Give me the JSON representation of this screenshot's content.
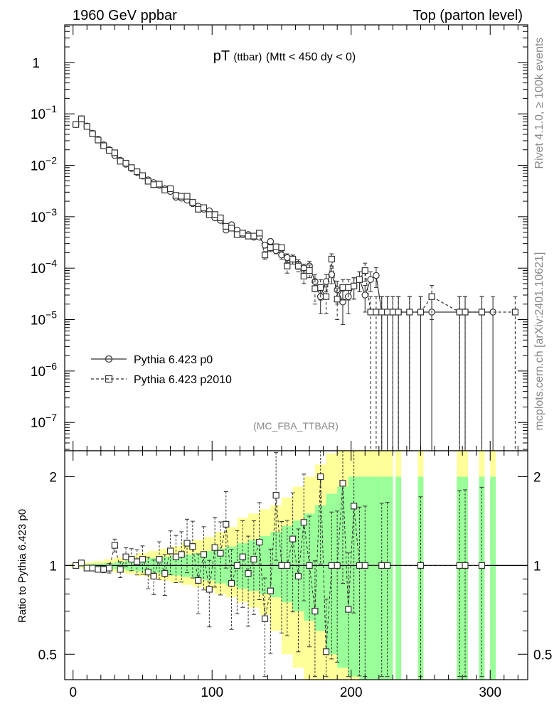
{
  "header": {
    "left": "1960 GeV ppbar",
    "right": "Top (parton level)"
  },
  "side_labels": {
    "rivet": "Rivet 4.1.0, ≥ 100k events",
    "source": "mcplots.cern.ch [arXiv:2401.10621]"
  },
  "colors": {
    "band_outer": "#ffff99",
    "band_inner": "#99ff99",
    "line": "#333333"
  },
  "chart_data": [
    {
      "type": "line",
      "title_main": "pT",
      "title_sub": "(ttbar)",
      "title_rest": "(Mtt < 450 dy < 0)",
      "analysis": "(MC_FBA_TTBAR)",
      "yscale": "log",
      "xlim": [
        -6,
        327
      ],
      "ylim_exp": [
        -7.55,
        0.73
      ],
      "ytick_labels": [
        {
          "value": 1,
          "base": "1",
          "exp": ""
        },
        {
          "value": 0.1,
          "base": "10",
          "exp": "−1"
        },
        {
          "value": 0.01,
          "base": "10",
          "exp": "−2"
        },
        {
          "value": 0.001,
          "base": "10",
          "exp": "−3"
        },
        {
          "value": 0.0001,
          "base": "10",
          "exp": "−4"
        },
        {
          "value": 1e-05,
          "base": "10",
          "exp": "−5"
        },
        {
          "value": 1e-06,
          "base": "10",
          "exp": "−6"
        },
        {
          "value": 1e-07,
          "base": "10",
          "exp": "−7"
        }
      ],
      "legend": [
        {
          "label": "Pythia 6.423 p0",
          "marker": "circle",
          "dash": "solid"
        },
        {
          "label": "Pythia 6.423 p2010",
          "marker": "square",
          "dash": "dashed"
        }
      ],
      "series": [
        {
          "name": "Pythia 6.423 p0",
          "x": [
            2,
            6,
            10,
            14,
            18,
            22,
            26,
            30,
            34,
            38,
            42,
            46,
            50,
            54,
            58,
            62,
            66,
            70,
            74,
            78,
            82,
            86,
            90,
            94,
            98,
            102,
            106,
            110,
            114,
            118,
            122,
            126,
            130,
            134,
            138,
            142,
            146,
            150,
            154,
            158,
            162,
            166,
            170,
            174,
            178,
            182,
            186,
            190,
            194,
            198,
            202,
            206,
            210,
            214,
            218,
            222,
            226,
            230,
            234,
            242,
            250,
            258,
            278,
            282,
            294,
            302
          ],
          "y": [
            0.062,
            0.08,
            0.058,
            0.042,
            0.032,
            0.025,
            0.02,
            0.0155,
            0.0125,
            0.0105,
            0.0087,
            0.0073,
            0.0062,
            0.0052,
            0.0046,
            0.0041,
            0.0035,
            0.0031,
            0.0024,
            0.0023,
            0.0021,
            0.0018,
            0.0016,
            0.0014,
            0.0013,
            0.00095,
            0.00085,
            0.00055,
            0.0007,
            0.00055,
            0.00045,
            0.00045,
            0.0004,
            0.0004,
            0.00028,
            0.00033,
            0.00022,
            0.00018,
            0.00016,
            0.00015,
            0.00012,
            0.0001,
            0.00011,
            5.5e-05,
            2.8e-05,
            5.5e-05,
            7.5e-05,
            3.8e-05,
            2.2e-05,
            2.8e-05,
            4.5e-05,
            6e-05,
            3e-05,
            6e-05,
            7.2e-05,
            1.4e-05,
            1.4e-05,
            1.4e-05,
            1.4e-05,
            1.4e-05,
            1.4e-05,
            1.4e-05,
            1.4e-05,
            1.4e-05,
            1.4e-05,
            1.4e-05
          ],
          "yerr": [
            0.003,
            0.003,
            0.002,
            0.0015,
            0.001,
            0.0008,
            0.0006,
            0.0005,
            0.0004,
            0.00035,
            0.0003,
            0.00025,
            0.0002,
            0.00018,
            0.00016,
            0.00014,
            0.00012,
            0.00011,
            0.0001,
            0.0001,
            9e-05,
            8e-05,
            7e-05,
            6e-05,
            6e-05,
            5e-05,
            5e-05,
            4e-05,
            5e-05,
            4e-05,
            4e-05,
            4e-05,
            4e-05,
            4e-05,
            3e-05,
            4e-05,
            3e-05,
            3e-05,
            3e-05,
            3e-05,
            2.5e-05,
            2e-05,
            2.5e-05,
            2e-05,
            1.5e-05,
            2e-05,
            2.5e-05,
            1.8e-05,
            1.4e-05,
            1.5e-05,
            2e-05,
            2.5e-05,
            1.6e-05,
            2.5e-05,
            3e-05,
            1.4e-05,
            1.4e-05,
            1.4e-05,
            1.4e-05,
            1.4e-05,
            1.4e-05,
            1.4e-05,
            1.4e-05,
            1.4e-05,
            1.4e-05,
            1.4e-05
          ]
        },
        {
          "name": "Pythia 6.423 p2010",
          "x": [
            2,
            6,
            10,
            14,
            18,
            22,
            26,
            30,
            34,
            38,
            42,
            46,
            50,
            54,
            58,
            62,
            66,
            70,
            74,
            78,
            82,
            86,
            90,
            94,
            98,
            102,
            106,
            110,
            114,
            118,
            122,
            126,
            130,
            134,
            138,
            142,
            146,
            150,
            154,
            158,
            162,
            166,
            170,
            174,
            178,
            182,
            186,
            190,
            194,
            198,
            202,
            206,
            210,
            214,
            218,
            222,
            226,
            230,
            234,
            242,
            250,
            258,
            278,
            282,
            294,
            318
          ],
          "y": [
            0.062,
            0.08,
            0.057,
            0.041,
            0.031,
            0.024,
            0.0195,
            0.0175,
            0.012,
            0.011,
            0.009,
            0.0075,
            0.0063,
            0.0049,
            0.0042,
            0.0043,
            0.0033,
            0.0035,
            0.0026,
            0.0025,
            0.0025,
            0.0019,
            0.0014,
            0.0015,
            0.0011,
            0.0011,
            0.00095,
            0.00065,
            0.0006,
            0.00045,
            0.00048,
            0.00042,
            0.00042,
            0.00048,
            0.00018,
            0.00025,
            0.00026,
            0.00025,
            0.00011,
            0.00015,
            0.00011,
            7e-05,
            9e-05,
            4e-05,
            4.2e-05,
            2.8e-05,
            0.00015,
            2.5e-05,
            4.2e-05,
            4.2e-05,
            4.5e-05,
            6e-05,
            9e-05,
            1.4e-05,
            1.4e-05,
            1.4e-05,
            1.4e-05,
            1.4e-05,
            1.4e-05,
            1.4e-05,
            1.4e-05,
            2.8e-05,
            1.4e-05,
            1.4e-05,
            1.4e-05,
            1.4e-05
          ],
          "yerr": [
            0.003,
            0.003,
            0.002,
            0.0015,
            0.001,
            0.0008,
            0.0006,
            0.0005,
            0.0004,
            0.00035,
            0.0003,
            0.00025,
            0.0002,
            0.00018,
            0.00016,
            0.00014,
            0.00012,
            0.00011,
            0.0001,
            0.0001,
            9e-05,
            8e-05,
            7e-05,
            6e-05,
            6e-05,
            5e-05,
            5e-05,
            4e-05,
            5e-05,
            4e-05,
            4e-05,
            4e-05,
            4e-05,
            4e-05,
            3e-05,
            4e-05,
            3e-05,
            3e-05,
            3e-05,
            3e-05,
            2.5e-05,
            2e-05,
            2.5e-05,
            2e-05,
            1.8e-05,
            1.5e-05,
            4e-05,
            1.5e-05,
            1.8e-05,
            1.8e-05,
            2e-05,
            2.5e-05,
            3.5e-05,
            1.4e-05,
            1.4e-05,
            1.4e-05,
            1.4e-05,
            1.4e-05,
            1.4e-05,
            1.4e-05,
            1.4e-05,
            1.8e-05,
            1.4e-05,
            1.4e-05,
            1.4e-05,
            1.4e-05
          ]
        }
      ]
    },
    {
      "type": "line",
      "ylabel": "Ratio to Pythia 6.423 p0",
      "yscale": "log",
      "xlim": [
        -6,
        327
      ],
      "ylim": [
        0.41,
        2.45
      ],
      "yticks": [
        0.5,
        1,
        2
      ],
      "ytick_labels": [
        "0.5",
        "1",
        "2"
      ],
      "xticks": [
        0,
        100,
        200,
        300
      ],
      "xtick_labels": [
        "0",
        "100",
        "200",
        "300"
      ],
      "band": {
        "x": [
          0,
          8,
          16,
          24,
          32,
          40,
          48,
          56,
          64,
          72,
          80,
          88,
          96,
          104,
          112,
          120,
          128,
          136,
          144,
          152,
          160,
          168,
          176,
          184,
          192,
          200,
          208,
          216,
          224
        ],
        "outer_lo": [
          0.985,
          0.975,
          0.965,
          0.955,
          0.945,
          0.935,
          0.92,
          0.905,
          0.89,
          0.875,
          0.86,
          0.845,
          0.825,
          0.8,
          0.78,
          0.75,
          0.72,
          0.68,
          0.6,
          0.5,
          0.45,
          0.4,
          0.38,
          0.35,
          0.35,
          0.35,
          0.35,
          0.35,
          0.35
        ],
        "outer_hi": [
          1.015,
          1.025,
          1.035,
          1.05,
          1.065,
          1.08,
          1.1,
          1.12,
          1.14,
          1.16,
          1.19,
          1.22,
          1.25,
          1.3,
          1.35,
          1.45,
          1.5,
          1.55,
          1.6,
          1.7,
          1.85,
          2.0,
          2.2,
          2.4,
          2.45,
          2.45,
          2.45,
          2.45,
          2.45
        ],
        "inner_lo": [
          0.995,
          0.99,
          0.985,
          0.975,
          0.97,
          0.96,
          0.955,
          0.945,
          0.935,
          0.925,
          0.915,
          0.9,
          0.89,
          0.87,
          0.855,
          0.835,
          0.82,
          0.8,
          0.78,
          0.75,
          0.7,
          0.65,
          0.6,
          0.5,
          0.45,
          0.42,
          0.41,
          0.41,
          0.41
        ],
        "inner_hi": [
          1.005,
          1.01,
          1.015,
          1.02,
          1.03,
          1.04,
          1.05,
          1.06,
          1.07,
          1.08,
          1.09,
          1.1,
          1.12,
          1.14,
          1.16,
          1.19,
          1.22,
          1.26,
          1.3,
          1.36,
          1.42,
          1.5,
          1.6,
          1.75,
          1.85,
          2.0,
          2.0,
          2.0,
          2.0
        ]
      },
      "ratio_x": [
        2,
        6,
        10,
        14,
        18,
        22,
        26,
        30,
        34,
        38,
        42,
        46,
        50,
        54,
        58,
        62,
        66,
        70,
        74,
        78,
        82,
        86,
        90,
        94,
        98,
        102,
        106,
        110,
        114,
        118,
        122,
        126,
        130,
        134,
        138,
        142,
        146,
        150,
        154,
        158,
        162,
        166,
        170,
        174,
        178,
        182,
        186,
        190,
        194,
        198,
        202,
        206,
        210,
        222,
        226,
        250,
        278,
        282,
        294
      ],
      "ratio_y": [
        1.0,
        1.02,
        0.98,
        0.98,
        0.97,
        0.97,
        0.98,
        1.17,
        0.97,
        1.07,
        1.05,
        1.03,
        1.05,
        0.95,
        0.92,
        1.05,
        0.94,
        1.12,
        1.07,
        1.09,
        1.19,
        1.16,
        0.89,
        1.09,
        0.83,
        1.15,
        1.1,
        1.38,
        0.87,
        1.0,
        1.07,
        0.94,
        1.05,
        1.2,
        0.66,
        0.82,
        1.73,
        1.0,
        1.0,
        1.23,
        0.92,
        1.4,
        1.0,
        0.7,
        2.0,
        0.51,
        1.0,
        1.0,
        1.9,
        0.71,
        1.59,
        1.0,
        1.0,
        1.0,
        1.0,
        1.0,
        1.0,
        1.0,
        1.0
      ]
    }
  ]
}
